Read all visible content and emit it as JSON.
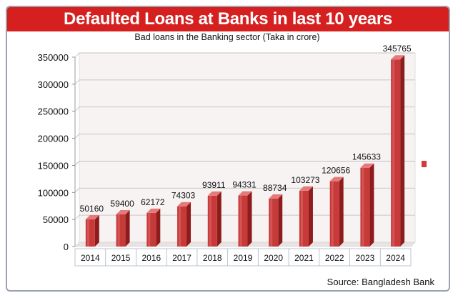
{
  "title": "Defaulted Loans at Banks in last 10 years",
  "source": "Source: Bangladesh Bank",
  "colors": {
    "banner": "#d62020",
    "bar_front": "#c73a3a",
    "bar_top": "#e57a7a",
    "bar_side": "#8f1c1c",
    "wall": "#f7f3f3",
    "grid": "#b9b9b9",
    "legend_swatch": "#d33a3a"
  },
  "chart_data": {
    "type": "bar",
    "subtitle": "Bad loans in the Banking sector (Taka in crore)",
    "categories": [
      "2014",
      "2015",
      "2016",
      "2017",
      "2018",
      "2019",
      "2020",
      "2021",
      "2022",
      "2023",
      "2024"
    ],
    "series": [
      {
        "values": [
          50160,
          59400,
          62172,
          74303,
          93911,
          94331,
          88734,
          103273,
          120656,
          145633,
          345765
        ]
      }
    ],
    "value_labels": [
      "50160",
      "59400",
      "62172",
      "74303",
      "93911",
      "94331",
      "88734",
      "103273",
      "120656",
      "145633",
      "345765"
    ],
    "y_ticks": [
      "0",
      "50000",
      "100000",
      "150000",
      "200000",
      "250000",
      "300000",
      "350000"
    ],
    "ylim": [
      0,
      350000
    ],
    "xlabel": "",
    "ylabel": "",
    "grid": true,
    "legend": "right"
  }
}
